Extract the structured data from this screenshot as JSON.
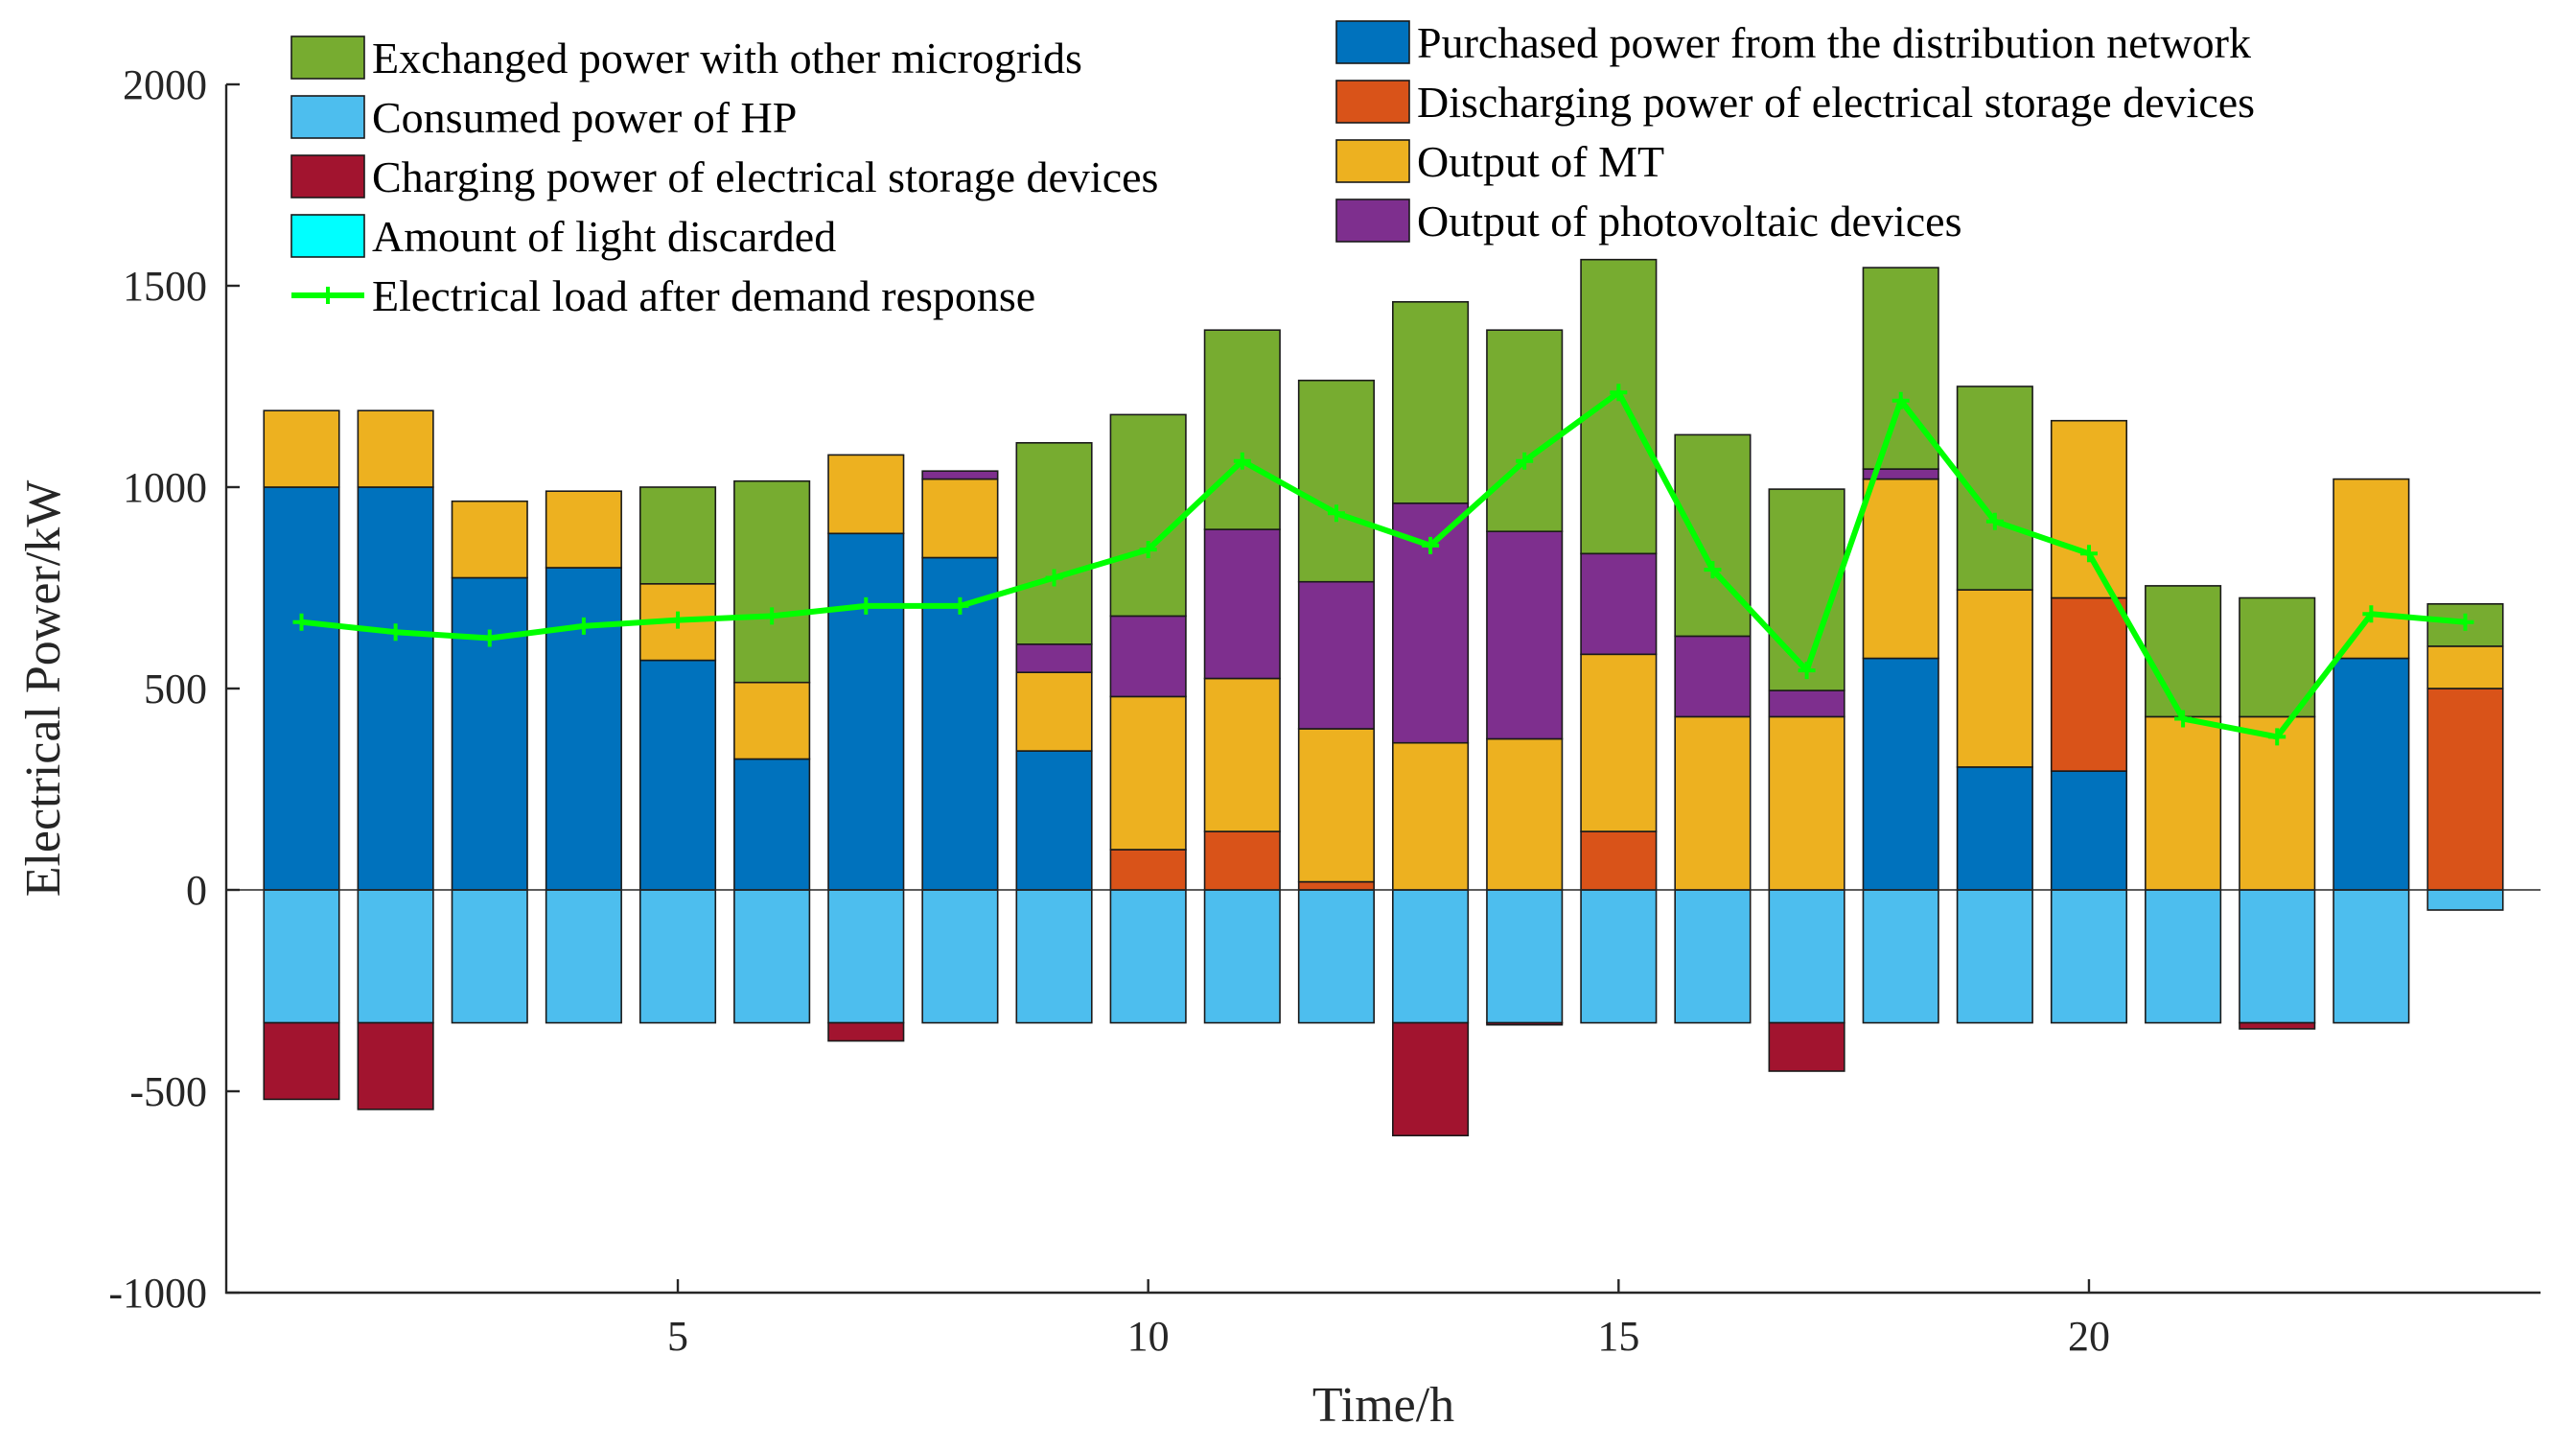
{
  "chart_data": {
    "type": "bar",
    "stacked": true,
    "xlabel": "Time/h",
    "ylabel": "Electrical Power/kW",
    "xlim": [
      0.2,
      24.8
    ],
    "ylim": [
      -1000,
      2000
    ],
    "xticks": [
      5,
      10,
      15,
      20
    ],
    "yticks": [
      -1000,
      -500,
      0,
      500,
      1000,
      1500,
      2000
    ],
    "hours": [
      1,
      2,
      3,
      4,
      5,
      6,
      7,
      8,
      9,
      10,
      11,
      12,
      13,
      14,
      15,
      16,
      17,
      18,
      19,
      20,
      21,
      22,
      23,
      24
    ],
    "positive_series": [
      {
        "key": "grid",
        "name": "Purchased power from the distribution network",
        "color": "#0072BD",
        "values": [
          1000,
          1000,
          775,
          800,
          570,
          325,
          885,
          825,
          345,
          0,
          0,
          0,
          0,
          0,
          0,
          0,
          0,
          575,
          305,
          295,
          0,
          0,
          575,
          0
        ]
      },
      {
        "key": "discharge",
        "name": "Discharging power of electrical storage devices",
        "color": "#D95319",
        "values": [
          0,
          0,
          0,
          0,
          0,
          0,
          0,
          0,
          0,
          100,
          145,
          20,
          0,
          0,
          145,
          0,
          0,
          0,
          0,
          430,
          0,
          0,
          0,
          500
        ]
      },
      {
        "key": "mt",
        "name": "Output of MT",
        "color": "#EDB120",
        "values": [
          190,
          190,
          190,
          190,
          190,
          190,
          195,
          195,
          195,
          380,
          380,
          380,
          365,
          375,
          440,
          430,
          430,
          445,
          440,
          440,
          430,
          430,
          445,
          105
        ]
      },
      {
        "key": "pv",
        "name": "Output of photovoltaic devices",
        "color": "#7E2F8E",
        "values": [
          0,
          0,
          0,
          0,
          0,
          0,
          0,
          20,
          70,
          200,
          370,
          365,
          595,
          515,
          250,
          200,
          65,
          25,
          0,
          0,
          0,
          0,
          0,
          0
        ]
      },
      {
        "key": "exchange",
        "name": "Exchanged power with other microgrids",
        "color": "#77AC30",
        "values": [
          0,
          0,
          0,
          0,
          240,
          500,
          0,
          0,
          500,
          500,
          495,
          500,
          500,
          500,
          730,
          500,
          500,
          500,
          505,
          0,
          325,
          295,
          0,
          105
        ]
      }
    ],
    "negative_series": [
      {
        "key": "hp",
        "name": "Consumed power of HP",
        "color": "#4DBEEE",
        "values": [
          -330,
          -330,
          -330,
          -330,
          -330,
          -330,
          -330,
          -330,
          -330,
          -330,
          -330,
          -330,
          -330,
          -330,
          -330,
          -330,
          -330,
          -330,
          -330,
          -330,
          -330,
          -330,
          -330,
          -50
        ]
      },
      {
        "key": "charge",
        "name": "Charging power of electrical storage devices",
        "color": "#A2142F",
        "values": [
          -190,
          -215,
          0,
          0,
          0,
          0,
          -45,
          0,
          0,
          0,
          0,
          0,
          -280,
          -5,
          0,
          0,
          -120,
          0,
          0,
          0,
          0,
          -15,
          0,
          0
        ]
      },
      {
        "key": "curtail",
        "name": "Amount of light discarded",
        "color": "#00FFFF",
        "values": [
          0,
          0,
          0,
          0,
          0,
          0,
          0,
          0,
          0,
          0,
          0,
          0,
          0,
          0,
          0,
          0,
          0,
          0,
          0,
          0,
          0,
          0,
          0,
          0
        ]
      }
    ],
    "line_series": {
      "name": "Electrical load after demand response",
      "color": "#00FF00",
      "values": [
        665,
        640,
        625,
        655,
        670,
        680,
        705,
        705,
        775,
        845,
        1065,
        935,
        855,
        1065,
        1235,
        795,
        545,
        1215,
        915,
        835,
        425,
        380,
        685,
        665
      ]
    },
    "legend_left": [
      "Exchanged power with other microgrids",
      "Consumed power of HP",
      "Charging power of electrical storage devices",
      "Amount of light discarded",
      "Electrical load after demand response"
    ],
    "legend_right": [
      "Purchased power from the distribution network",
      "Discharging power of electrical storage devices",
      "Output of MT",
      "Output of photovoltaic devices"
    ]
  }
}
